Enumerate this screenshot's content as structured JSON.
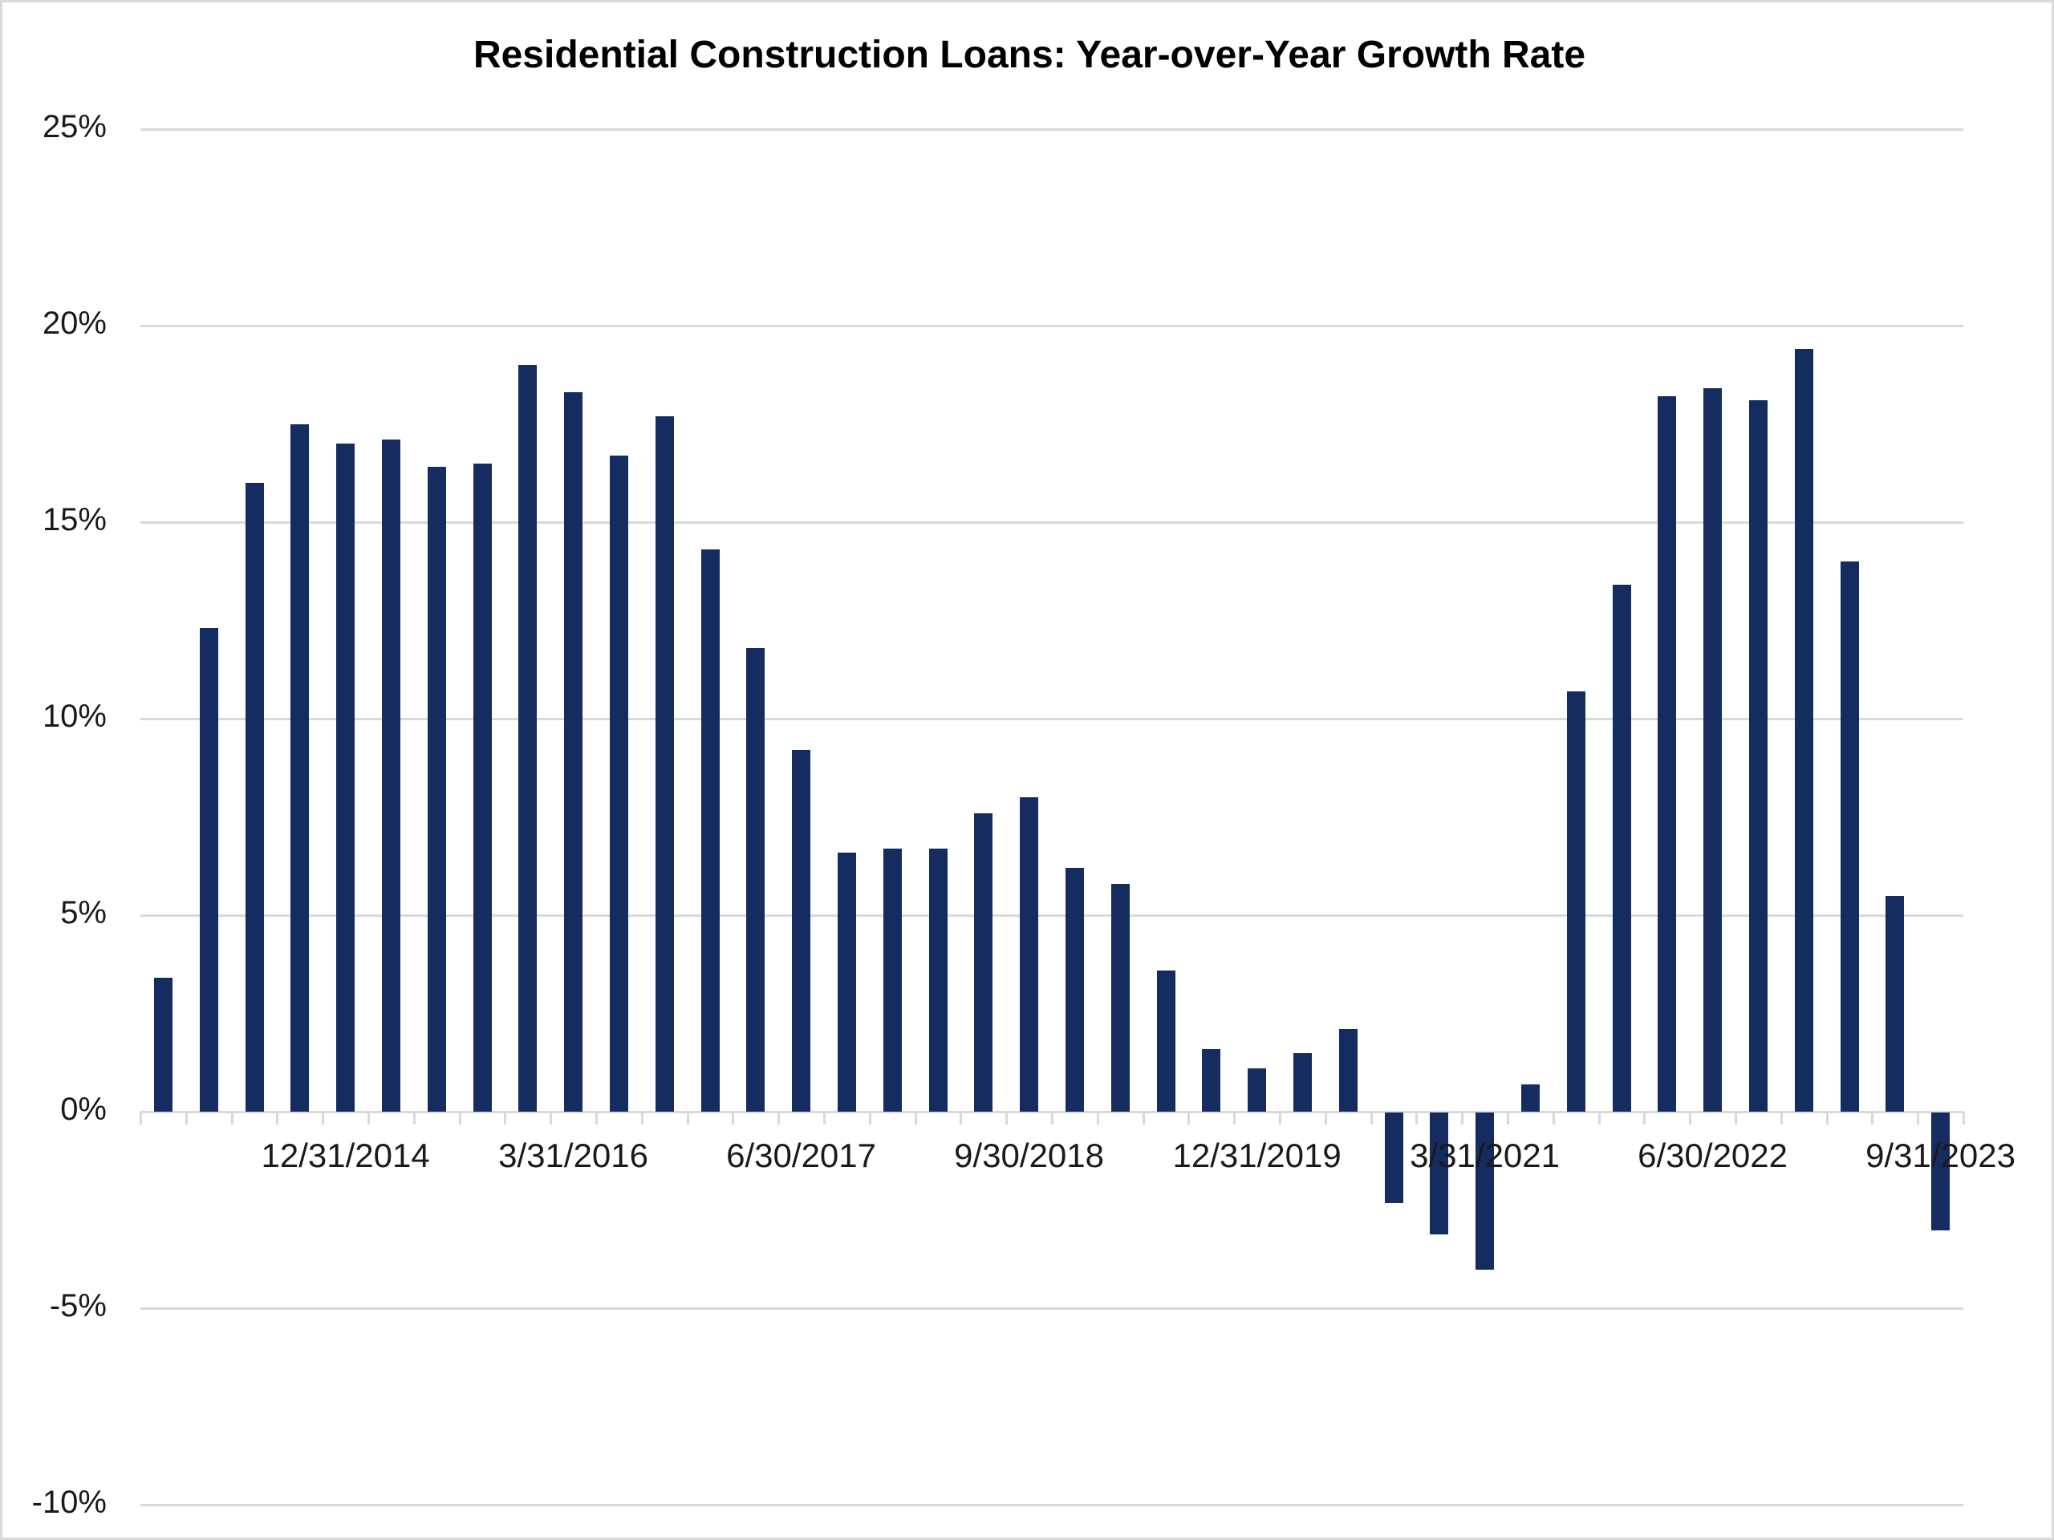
{
  "page": {
    "background_color": "#ffffff",
    "frame_border_color": "#d9d9d9"
  },
  "chart_data": {
    "type": "bar",
    "title": "Residential Construction Loans: Year-over-Year Growth Rate",
    "xlabel": "",
    "ylabel": "",
    "ylim": [
      -10,
      25
    ],
    "grid": true,
    "legend": "none",
    "bar_color": "#142c5f",
    "gridline_color": "#d9d9d9",
    "axis_color": "#d9d9d9",
    "text_color": "#1a1a1a",
    "values": [
      3.4,
      12.3,
      16.0,
      17.5,
      17.0,
      17.1,
      16.4,
      16.5,
      19.0,
      18.3,
      16.7,
      17.7,
      14.3,
      11.8,
      9.2,
      6.6,
      6.7,
      6.7,
      7.6,
      8.0,
      6.2,
      5.8,
      3.6,
      1.6,
      1.1,
      1.5,
      2.1,
      -2.3,
      -3.1,
      -4.0,
      0.7,
      10.7,
      13.4,
      18.2,
      18.4,
      18.1,
      19.4,
      14.0,
      5.5,
      -3.0
    ],
    "x_tick_labels": [
      {
        "index": 4,
        "label": "12/31/2014"
      },
      {
        "index": 9,
        "label": "3/31/2016"
      },
      {
        "index": 14,
        "label": "6/30/2017"
      },
      {
        "index": 19,
        "label": "9/30/2018"
      },
      {
        "index": 24,
        "label": "12/31/2019"
      },
      {
        "index": 29,
        "label": "3/31/2021"
      },
      {
        "index": 34,
        "label": "6/30/2022"
      },
      {
        "index": 39,
        "label": "9/31/2023"
      }
    ],
    "y_ticks": [
      {
        "value": 25,
        "label": "25%"
      },
      {
        "value": 20,
        "label": "20%"
      },
      {
        "value": 15,
        "label": "15%"
      },
      {
        "value": 10,
        "label": "10%"
      },
      {
        "value": 5,
        "label": "5%"
      },
      {
        "value": 0,
        "label": "0%"
      },
      {
        "value": -5,
        "label": "-5%"
      },
      {
        "value": -10,
        "label": "-10%"
      }
    ]
  }
}
